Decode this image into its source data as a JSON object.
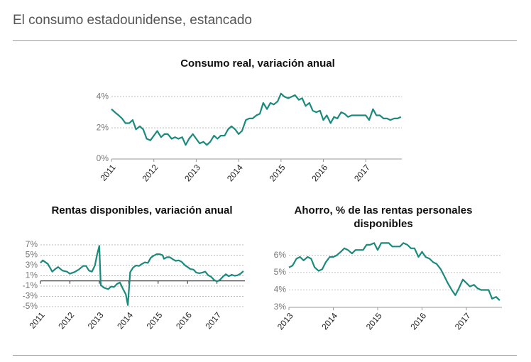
{
  "header": {
    "title": "El consumo estadounidense, estancado"
  },
  "chart_data": [
    {
      "type": "line",
      "title": "Consumo real, variación anual",
      "color": "#1b8a7c",
      "grid": true,
      "xlim": [
        2011,
        2017.85
      ],
      "xticks": [
        2011,
        2012,
        2013,
        2014,
        2015,
        2016,
        2017
      ],
      "ylim": [
        0,
        4.6
      ],
      "yticks": [
        {
          "value": 0,
          "label": "0%"
        },
        {
          "value": 2,
          "label": "2%"
        },
        {
          "value": 4,
          "label": "4%"
        }
      ],
      "x": [
        2011.0,
        2011.08,
        2011.17,
        2011.25,
        2011.33,
        2011.42,
        2011.5,
        2011.58,
        2011.67,
        2011.75,
        2011.83,
        2011.92,
        2012.0,
        2012.08,
        2012.17,
        2012.25,
        2012.33,
        2012.42,
        2012.5,
        2012.58,
        2012.67,
        2012.75,
        2012.83,
        2012.92,
        2013.0,
        2013.08,
        2013.17,
        2013.25,
        2013.33,
        2013.42,
        2013.5,
        2013.58,
        2013.67,
        2013.75,
        2013.83,
        2013.92,
        2014.0,
        2014.08,
        2014.17,
        2014.25,
        2014.33,
        2014.42,
        2014.5,
        2014.58,
        2014.67,
        2014.75,
        2014.83,
        2014.92,
        2015.0,
        2015.08,
        2015.17,
        2015.25,
        2015.33,
        2015.42,
        2015.5,
        2015.58,
        2015.67,
        2015.75,
        2015.83,
        2015.92,
        2016.0,
        2016.08,
        2016.17,
        2016.25,
        2016.33,
        2016.42,
        2016.5,
        2016.58,
        2016.67,
        2016.75,
        2016.83,
        2016.92,
        2017.0,
        2017.08,
        2017.17,
        2017.25,
        2017.33,
        2017.42,
        2017.5,
        2017.58,
        2017.67,
        2017.75,
        2017.83
      ],
      "values": [
        3.2,
        3.0,
        2.8,
        2.6,
        2.3,
        2.3,
        2.5,
        1.9,
        2.1,
        1.9,
        1.3,
        1.2,
        1.5,
        1.8,
        1.4,
        1.6,
        1.6,
        1.3,
        1.4,
        1.3,
        1.4,
        0.9,
        1.3,
        1.6,
        1.3,
        1.0,
        1.1,
        0.9,
        1.1,
        1.5,
        1.3,
        1.5,
        1.5,
        1.9,
        2.1,
        1.9,
        1.6,
        1.8,
        2.5,
        2.6,
        2.6,
        2.8,
        2.9,
        3.6,
        3.2,
        3.6,
        3.5,
        3.7,
        4.2,
        4.0,
        3.9,
        4.0,
        4.1,
        3.8,
        3.9,
        3.4,
        3.6,
        3.1,
        3.0,
        3.1,
        2.5,
        2.8,
        2.3,
        2.7,
        2.6,
        3.0,
        2.9,
        2.7,
        2.8,
        2.8,
        2.8,
        2.8,
        2.8,
        2.5,
        3.2,
        2.8,
        2.8,
        2.6,
        2.6,
        2.5,
        2.6,
        2.6,
        2.7
      ]
    },
    {
      "type": "line",
      "title": "Rentas disponibles, variación anual",
      "color": "#1b8a7c",
      "grid": true,
      "xlim": [
        2011,
        2017.95
      ],
      "xticks": [
        2011,
        2012,
        2013,
        2014,
        2015,
        2016,
        2017
      ],
      "ylim": [
        -5,
        7
      ],
      "yticks": [
        {
          "value": 7,
          "label": "7%"
        },
        {
          "value": 5,
          "label": "5%"
        },
        {
          "value": 3,
          "label": "3%"
        },
        {
          "value": 1,
          "label": "1%"
        },
        {
          "value": -1,
          "label": "-1%"
        },
        {
          "value": -3,
          "label": "-3%"
        },
        {
          "value": -5,
          "label": "-5%"
        }
      ],
      "x": [
        2011.0,
        2011.08,
        2011.25,
        2011.4,
        2011.5,
        2011.6,
        2011.75,
        2011.9,
        2012.0,
        2012.15,
        2012.3,
        2012.45,
        2012.55,
        2012.65,
        2012.75,
        2012.85,
        2012.92,
        2013.0,
        2013.05,
        2013.15,
        2013.3,
        2013.4,
        2013.5,
        2013.6,
        2013.7,
        2013.8,
        2013.9,
        2013.97,
        2014.05,
        2014.15,
        2014.25,
        2014.35,
        2014.45,
        2014.55,
        2014.65,
        2014.75,
        2014.85,
        2014.95,
        2015.05,
        2015.15,
        2015.2,
        2015.3,
        2015.4,
        2015.5,
        2015.6,
        2015.7,
        2015.8,
        2015.9,
        2016.0,
        2016.1,
        2016.2,
        2016.3,
        2016.4,
        2016.5,
        2016.6,
        2016.7,
        2016.8,
        2016.9,
        2017.0,
        2017.1,
        2017.2,
        2017.3,
        2017.4,
        2017.5,
        2017.6,
        2017.7,
        2017.8,
        2017.9
      ],
      "values": [
        3.5,
        4.0,
        3.3,
        1.8,
        2.3,
        2.7,
        2.0,
        1.8,
        1.4,
        1.7,
        2.2,
        2.9,
        2.9,
        2.0,
        1.8,
        3.0,
        5.0,
        6.8,
        -0.8,
        -1.3,
        -1.6,
        -1.1,
        -1.2,
        -0.6,
        -0.3,
        -1.5,
        -2.6,
        -4.7,
        1.7,
        2.6,
        3.0,
        2.9,
        3.3,
        3.6,
        3.5,
        4.5,
        4.9,
        5.2,
        5.2,
        5.0,
        4.3,
        4.6,
        4.6,
        4.2,
        3.9,
        4.0,
        3.7,
        3.1,
        2.7,
        2.3,
        2.2,
        1.6,
        1.5,
        1.6,
        1.8,
        1.1,
        0.8,
        0.2,
        -0.1,
        0.2,
        0.8,
        1.3,
        0.9,
        1.2,
        1.0,
        1.1,
        1.4,
        1.9
      ]
    },
    {
      "type": "line",
      "title": "Ahorro, % de las rentas personales disponibles",
      "color": "#1b8a7c",
      "grid": true,
      "xlim": [
        2013,
        2017.8
      ],
      "xticks": [
        2013,
        2014,
        2015,
        2016,
        2017
      ],
      "ylim": [
        3,
        6.8
      ],
      "yticks": [
        {
          "value": 3,
          "label": "3%"
        },
        {
          "value": 4,
          "label": "4%"
        },
        {
          "value": 5,
          "label": "5%"
        },
        {
          "value": 6,
          "label": "6%"
        }
      ],
      "x": [
        2013.0,
        2013.08,
        2013.17,
        2013.25,
        2013.33,
        2013.42,
        2013.5,
        2013.58,
        2013.67,
        2013.75,
        2013.83,
        2013.92,
        2014.0,
        2014.08,
        2014.17,
        2014.25,
        2014.33,
        2014.42,
        2014.5,
        2014.58,
        2014.67,
        2014.75,
        2014.83,
        2014.92,
        2015.0,
        2015.08,
        2015.17,
        2015.25,
        2015.33,
        2015.42,
        2015.5,
        2015.58,
        2015.67,
        2015.75,
        2015.83,
        2015.92,
        2016.0,
        2016.08,
        2016.17,
        2016.25,
        2016.33,
        2016.42,
        2016.5,
        2016.58,
        2016.67,
        2016.75,
        2016.83,
        2016.92,
        2017.0,
        2017.08,
        2017.17,
        2017.25,
        2017.33,
        2017.42,
        2017.5,
        2017.58,
        2017.67,
        2017.75
      ],
      "values": [
        5.3,
        5.4,
        5.8,
        5.9,
        5.7,
        5.9,
        5.8,
        5.3,
        5.1,
        5.2,
        5.6,
        5.9,
        5.9,
        6.0,
        6.2,
        6.4,
        6.3,
        6.1,
        6.3,
        6.3,
        6.3,
        6.6,
        6.6,
        6.7,
        6.3,
        6.7,
        6.7,
        6.7,
        6.5,
        6.5,
        6.5,
        6.7,
        6.6,
        6.4,
        6.4,
        5.9,
        6.2,
        5.9,
        5.8,
        5.6,
        5.5,
        5.2,
        4.8,
        4.4,
        4.0,
        3.7,
        4.1,
        4.6,
        4.4,
        4.2,
        4.3,
        4.1,
        4.0,
        4.0,
        4.0,
        3.5,
        3.6,
        3.4
      ]
    }
  ]
}
